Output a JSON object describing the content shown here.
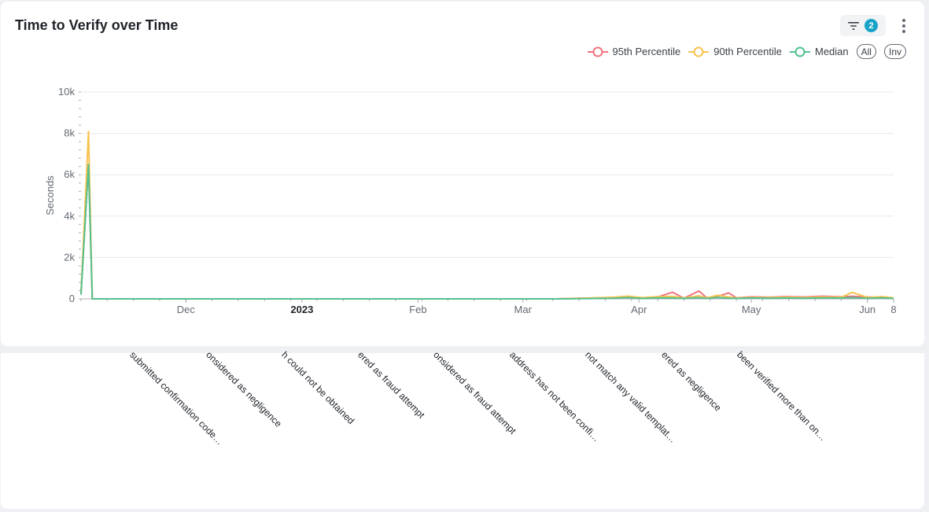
{
  "header": {
    "title": "Time to Verify over Time",
    "filter_count": "2"
  },
  "legend": {
    "all_label": "All",
    "inv_label": "Inv"
  },
  "colors": {
    "p95": "#f0737f",
    "p90": "#f8c350",
    "median": "#52c08f",
    "grid": "#e6e8eb",
    "axis": "#a8abb2",
    "tick_text": "#646a73"
  },
  "rotated_labels": [
    "submitted confirmation code…",
    "onsidered as negligence",
    "h could not be obtained",
    "ered as fraud attempt",
    "onsidered as fraud attempt",
    "address has not been confi…",
    "not match any valid templat…",
    "ered as negligence",
    "been verified more than on…"
  ],
  "chart_data": {
    "type": "line",
    "title": "Time to Verify over Time",
    "ylabel": "Seconds",
    "xlabel": "",
    "ylim": [
      0,
      10000
    ],
    "xlim": [
      "2022-11-03",
      "2023-06-08"
    ],
    "y_ticks": [
      0,
      2000,
      4000,
      6000,
      8000,
      10000
    ],
    "y_tick_labels": [
      "0",
      "2k",
      "4k",
      "6k",
      "8k",
      "10k"
    ],
    "x_ticks": [
      {
        "date": "2022-12-01",
        "label": "Dec",
        "bold": false
      },
      {
        "date": "2023-01-01",
        "label": "2023",
        "bold": true
      },
      {
        "date": "2023-02-01",
        "label": "Feb",
        "bold": false
      },
      {
        "date": "2023-03-01",
        "label": "Mar",
        "bold": false
      },
      {
        "date": "2023-04-01",
        "label": "Apr",
        "bold": false
      },
      {
        "date": "2023-05-01",
        "label": "May",
        "bold": false
      },
      {
        "date": "2023-06-01",
        "label": "Jun",
        "bold": false
      },
      {
        "date": "2023-06-08",
        "label": "8",
        "bold": false
      }
    ],
    "grid": true,
    "legend_position": "top-right",
    "series": [
      {
        "name": "95th Percentile",
        "color": "#f0737f",
        "points": [
          [
            "2022-11-03",
            300
          ],
          [
            "2022-11-05",
            6500
          ],
          [
            "2022-11-06",
            0
          ],
          [
            "2022-11-08",
            0
          ],
          [
            "2022-11-15",
            0
          ],
          [
            "2023-03-10",
            0
          ],
          [
            "2023-03-15",
            20
          ],
          [
            "2023-03-20",
            40
          ],
          [
            "2023-03-25",
            60
          ],
          [
            "2023-03-29",
            120
          ],
          [
            "2023-04-02",
            40
          ],
          [
            "2023-04-06",
            90
          ],
          [
            "2023-04-10",
            320
          ],
          [
            "2023-04-13",
            30
          ],
          [
            "2023-04-17",
            380
          ],
          [
            "2023-04-19",
            60
          ],
          [
            "2023-04-22",
            120
          ],
          [
            "2023-04-25",
            290
          ],
          [
            "2023-04-27",
            50
          ],
          [
            "2023-05-01",
            100
          ],
          [
            "2023-05-06",
            80
          ],
          [
            "2023-05-10",
            110
          ],
          [
            "2023-05-15",
            90
          ],
          [
            "2023-05-20",
            130
          ],
          [
            "2023-05-25",
            100
          ],
          [
            "2023-05-28",
            120
          ],
          [
            "2023-06-01",
            90
          ],
          [
            "2023-06-05",
            60
          ],
          [
            "2023-06-08",
            40
          ]
        ]
      },
      {
        "name": "90th Percentile",
        "color": "#f8c350",
        "points": [
          [
            "2022-11-03",
            300
          ],
          [
            "2022-11-05",
            8100
          ],
          [
            "2022-11-06",
            0
          ],
          [
            "2022-11-08",
            0
          ],
          [
            "2022-11-15",
            0
          ],
          [
            "2023-03-10",
            0
          ],
          [
            "2023-03-15",
            30
          ],
          [
            "2023-03-20",
            50
          ],
          [
            "2023-03-25",
            80
          ],
          [
            "2023-03-29",
            130
          ],
          [
            "2023-04-02",
            60
          ],
          [
            "2023-04-06",
            110
          ],
          [
            "2023-04-10",
            120
          ],
          [
            "2023-04-13",
            40
          ],
          [
            "2023-04-17",
            150
          ],
          [
            "2023-04-19",
            50
          ],
          [
            "2023-04-22",
            170
          ],
          [
            "2023-04-25",
            90
          ],
          [
            "2023-04-27",
            40
          ],
          [
            "2023-05-01",
            70
          ],
          [
            "2023-05-06",
            60
          ],
          [
            "2023-05-10",
            80
          ],
          [
            "2023-05-15",
            60
          ],
          [
            "2023-05-20",
            90
          ],
          [
            "2023-05-25",
            80
          ],
          [
            "2023-05-28",
            310
          ],
          [
            "2023-06-01",
            70
          ],
          [
            "2023-06-05",
            110
          ],
          [
            "2023-06-08",
            50
          ]
        ]
      },
      {
        "name": "Median",
        "color": "#52c08f",
        "points": [
          [
            "2022-11-03",
            200
          ],
          [
            "2022-11-05",
            6500
          ],
          [
            "2022-11-06",
            0
          ],
          [
            "2022-11-08",
            0
          ],
          [
            "2022-11-15",
            0
          ],
          [
            "2023-03-10",
            0
          ],
          [
            "2023-03-15",
            10
          ],
          [
            "2023-03-20",
            20
          ],
          [
            "2023-03-25",
            30
          ],
          [
            "2023-03-29",
            60
          ],
          [
            "2023-04-02",
            20
          ],
          [
            "2023-04-06",
            50
          ],
          [
            "2023-04-10",
            40
          ],
          [
            "2023-04-13",
            20
          ],
          [
            "2023-04-17",
            60
          ],
          [
            "2023-04-19",
            20
          ],
          [
            "2023-04-22",
            70
          ],
          [
            "2023-04-25",
            30
          ],
          [
            "2023-04-27",
            20
          ],
          [
            "2023-05-01",
            40
          ],
          [
            "2023-05-06",
            30
          ],
          [
            "2023-05-10",
            40
          ],
          [
            "2023-05-15",
            30
          ],
          [
            "2023-05-20",
            40
          ],
          [
            "2023-05-25",
            40
          ],
          [
            "2023-05-28",
            60
          ],
          [
            "2023-06-01",
            30
          ],
          [
            "2023-06-05",
            50
          ],
          [
            "2023-06-08",
            20
          ]
        ]
      }
    ]
  }
}
